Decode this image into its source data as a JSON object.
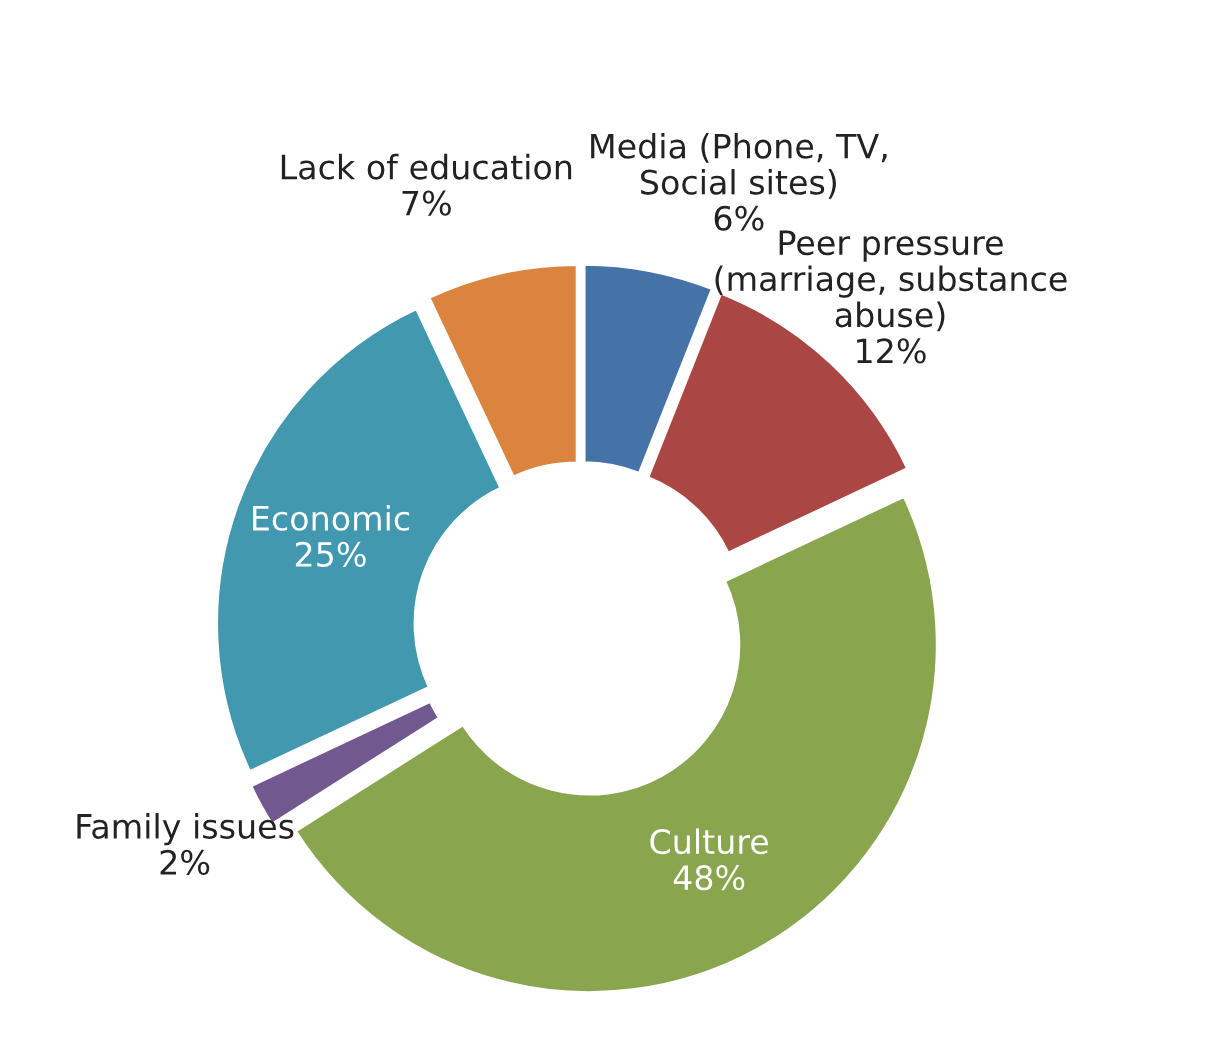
{
  "chart_data": {
    "type": "donut",
    "categories": [
      "Media (Phone, TV,\nSocial sites)",
      "Peer pressure\n(marriage, substance\nabuse)",
      "Culture",
      "Family issues",
      "Economic",
      "Lack of education"
    ],
    "values": [
      6,
      12,
      48,
      2,
      25,
      7
    ],
    "value_labels": [
      "6%",
      "12%",
      "48%",
      "2%",
      "25%",
      "7%"
    ],
    "colors": [
      "#4572a7",
      "#aa4643",
      "#89a54e",
      "#71588f",
      "#4198af",
      "#db843d"
    ],
    "legend": false
  }
}
